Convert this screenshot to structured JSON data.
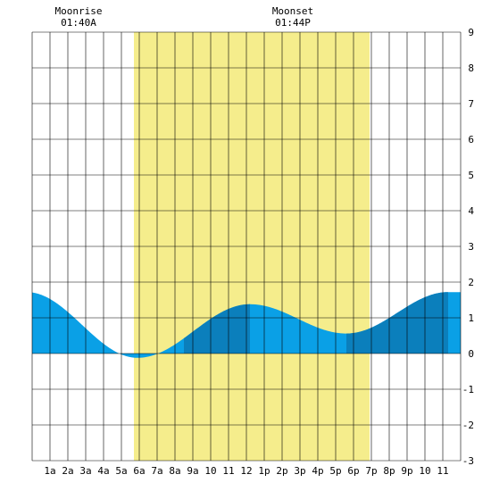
{
  "chart_data": {
    "type": "area",
    "title": "",
    "xlabel": "",
    "ylabel": "",
    "xlim": [
      0,
      24
    ],
    "ylim": [
      -3,
      9
    ],
    "y_ticks": [
      "-3",
      "-2",
      "-1",
      "0",
      "1",
      "2",
      "3",
      "4",
      "5",
      "6",
      "7",
      "8",
      "9"
    ],
    "x_ticks": [
      {
        "hour": 1,
        "label": "1a"
      },
      {
        "hour": 2,
        "label": "2a"
      },
      {
        "hour": 3,
        "label": "3a"
      },
      {
        "hour": 4,
        "label": "4a"
      },
      {
        "hour": 5,
        "label": "5a"
      },
      {
        "hour": 6,
        "label": "6a"
      },
      {
        "hour": 7,
        "label": "7a"
      },
      {
        "hour": 8,
        "label": "8a"
      },
      {
        "hour": 9,
        "label": "9a"
      },
      {
        "hour": 10,
        "label": "10"
      },
      {
        "hour": 11,
        "label": "11"
      },
      {
        "hour": 12,
        "label": "12"
      },
      {
        "hour": 13,
        "label": "1p"
      },
      {
        "hour": 14,
        "label": "2p"
      },
      {
        "hour": 15,
        "label": "3p"
      },
      {
        "hour": 16,
        "label": "4p"
      },
      {
        "hour": 17,
        "label": "5p"
      },
      {
        "hour": 18,
        "label": "6p"
      },
      {
        "hour": 19,
        "label": "7p"
      },
      {
        "hour": 20,
        "label": "8p"
      },
      {
        "hour": 21,
        "label": "9p"
      },
      {
        "hour": 22,
        "label": "10"
      },
      {
        "hour": 23,
        "label": "11"
      }
    ],
    "daylight": {
      "start": 5.7,
      "end": 18.9
    },
    "tide_extremes": [
      {
        "hour": -0.3,
        "height": 1.72
      },
      {
        "hour": 5.9,
        "height": -0.12
      },
      {
        "hour": 12.2,
        "height": 1.38
      },
      {
        "hour": 17.6,
        "height": 0.56
      },
      {
        "hour": 23.3,
        "height": 1.72
      }
    ],
    "shade_bands": [
      {
        "start": 8.5,
        "end": 12.2
      },
      {
        "start": 17.6,
        "end": 23.3
      }
    ],
    "moon_events": [
      {
        "hour": 2.6,
        "label": "Moonrise",
        "time": "01:40A"
      },
      {
        "hour": 14.6,
        "label": "Moonset",
        "time": "01:44P"
      }
    ],
    "grid": true,
    "colors": {
      "daylight": "#f5ed8c",
      "tide": "#0aa0e6",
      "tide_shade": "#0b7fbc",
      "grid": "#000000",
      "background": "#ffffff"
    }
  }
}
